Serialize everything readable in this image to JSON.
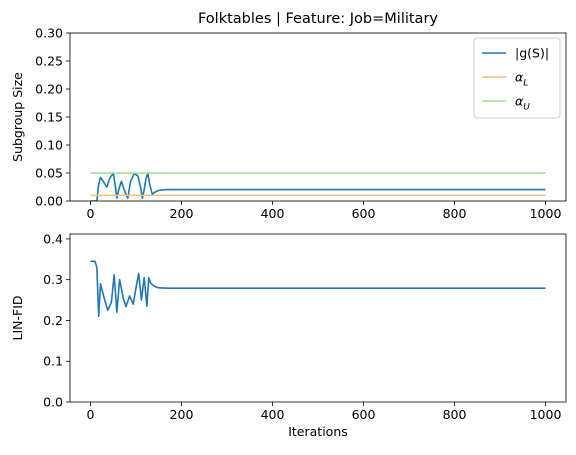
{
  "chart_data": [
    {
      "type": "line",
      "title": "Folktables | Feature: Job=Military",
      "xlabel": "",
      "ylabel": "Subgroup Size",
      "xlim": [
        -45,
        1045
      ],
      "ylim": [
        0,
        0.3
      ],
      "xticks": [
        0,
        200,
        400,
        600,
        800,
        1000
      ],
      "xtick_labels": [
        "0",
        "200",
        "400",
        "600",
        "800",
        "1000"
      ],
      "yticks": [
        0,
        0.05,
        0.1,
        0.15,
        0.2,
        0.25,
        0.3
      ],
      "ytick_labels": [
        "0.00",
        "0.05",
        "0.10",
        "0.15",
        "0.20",
        "0.25",
        "0.30"
      ],
      "grid": false,
      "legend": "top-right",
      "series": [
        {
          "name": "|g(S)|",
          "color": "#1f77b4",
          "x": [
            0,
            10,
            14,
            18,
            22,
            28,
            36,
            42,
            50,
            54,
            58,
            62,
            68,
            74,
            82,
            88,
            96,
            104,
            110,
            114,
            118,
            122,
            126,
            130,
            136,
            142,
            150,
            160,
            175,
            200,
            300,
            400,
            500,
            600,
            700,
            800,
            900,
            1000
          ],
          "y": [
            0.0,
            0.0,
            0.0,
            0.03,
            0.042,
            0.035,
            0.025,
            0.04,
            0.05,
            0.03,
            0.005,
            0.02,
            0.035,
            0.02,
            0.005,
            0.035,
            0.049,
            0.045,
            0.025,
            0.005,
            0.02,
            0.04,
            0.05,
            0.03,
            0.012,
            0.016,
            0.019,
            0.02,
            0.0205,
            0.0205,
            0.0205,
            0.0205,
            0.0205,
            0.0205,
            0.0205,
            0.0205,
            0.0205,
            0.0205
          ]
        },
        {
          "name": "α_L",
          "color": "#ffbb78",
          "x": [
            0,
            1000
          ],
          "y": [
            0.01,
            0.01
          ]
        },
        {
          "name": "α_U",
          "color": "#98df8a",
          "x": [
            0,
            1000
          ],
          "y": [
            0.05,
            0.05
          ]
        }
      ]
    },
    {
      "type": "line",
      "title": "",
      "xlabel": "Iterations",
      "ylabel": "LIN-FID",
      "xlim": [
        -45,
        1045
      ],
      "ylim": [
        0,
        0.412
      ],
      "xticks": [
        0,
        200,
        400,
        600,
        800,
        1000
      ],
      "xtick_labels": [
        "0",
        "200",
        "400",
        "600",
        "800",
        "1000"
      ],
      "yticks": [
        0,
        0.1,
        0.2,
        0.3,
        0.4
      ],
      "ytick_labels": [
        "0.0",
        "0.1",
        "0.2",
        "0.3",
        "0.4"
      ],
      "grid": false,
      "series": [
        {
          "name": "",
          "color": "#1f77b4",
          "x": [
            0,
            10,
            14,
            18,
            22,
            30,
            38,
            46,
            52,
            58,
            64,
            72,
            78,
            86,
            94,
            100,
            106,
            112,
            118,
            124,
            128,
            132,
            140,
            150,
            170,
            200,
            300,
            400,
            500,
            600,
            700,
            800,
            900,
            1000
          ],
          "y": [
            0.345,
            0.345,
            0.33,
            0.21,
            0.29,
            0.255,
            0.225,
            0.245,
            0.312,
            0.22,
            0.3,
            0.255,
            0.234,
            0.26,
            0.24,
            0.28,
            0.315,
            0.25,
            0.305,
            0.235,
            0.305,
            0.292,
            0.284,
            0.28,
            0.279,
            0.279,
            0.279,
            0.279,
            0.279,
            0.279,
            0.279,
            0.279,
            0.279,
            0.279
          ]
        }
      ]
    }
  ]
}
